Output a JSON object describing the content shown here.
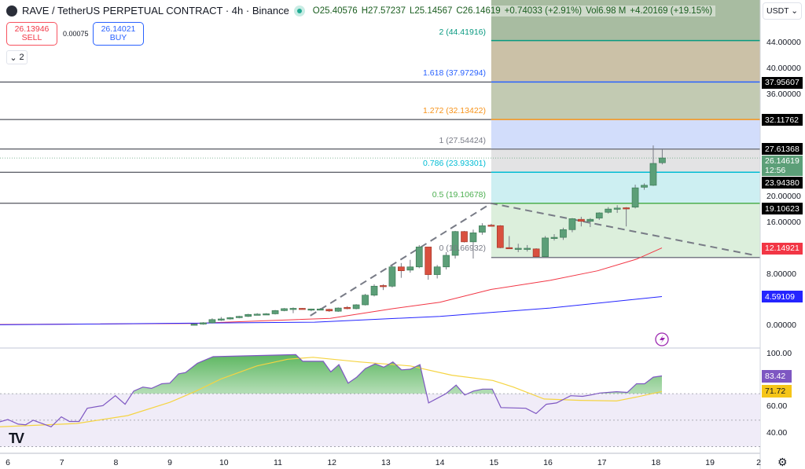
{
  "header": {
    "symbol": "RAVE / TetherUS PERPETUAL CONTRACT · 4h · Binance",
    "open": "O25.40576",
    "high": "H27.57237",
    "low": "L25.14567",
    "close": "C26.14619",
    "change": "+0.74033 (+2.91%)",
    "volume": "Vol6.98 M",
    "change2": "+4.20169 (+19.15%)"
  },
  "trade": {
    "sell_price": "26.13946",
    "sell_label": "SELL",
    "spread": "0.00075",
    "buy_price": "26.14021",
    "buy_label": "BUY"
  },
  "indicators_toggle": "2",
  "currency": "USDT",
  "fib_levels": [
    {
      "label": "2 (44.41916)",
      "price": 44.41916,
      "color": "#089981"
    },
    {
      "label": "1.618 (37.97294)",
      "price": 37.97294,
      "color": "#2962ff"
    },
    {
      "label": "1.272 (32.13422)",
      "price": 32.13422,
      "color": "#f7931a"
    },
    {
      "label": "1 (27.54424)",
      "price": 27.54424,
      "color": "#787b86"
    },
    {
      "label": "0.786 (23.93301)",
      "price": 23.93301,
      "color": "#00bcd4"
    },
    {
      "label": "0.5 (19.10678)",
      "price": 19.10678,
      "color": "#4caf50"
    },
    {
      "label": "0 (10.66932)",
      "price": 10.66932,
      "color": "#787b86"
    }
  ],
  "fib_zone_colors": [
    "#a8bca1",
    "#cbc1a7",
    "#c2cab2",
    "#d2ddfb",
    "#e3e3e4",
    "#cdeff2",
    "#dcefdc"
  ],
  "price_axis": [
    {
      "label": "44.00000",
      "value": 44
    },
    {
      "label": "40.00000",
      "value": 40
    },
    {
      "label": "36.00000",
      "value": 36
    },
    {
      "label": "20.00000",
      "value": 20
    },
    {
      "label": "16.00000",
      "value": 16
    },
    {
      "label": "8.00000",
      "value": 8
    },
    {
      "label": "0.00000",
      "value": 0
    }
  ],
  "price_tags": [
    {
      "label": "37.95607",
      "value": 37.95607,
      "color": "#000000"
    },
    {
      "label": "32.11762",
      "value": 32.11762,
      "color": "#000000"
    },
    {
      "label": "27.61368",
      "value": 27.61368,
      "color": "#000000"
    },
    {
      "label": "23.94380",
      "value": 23.9438,
      "color": "#000000"
    },
    {
      "label": "19.10623",
      "value": 19.10623,
      "color": "#000000"
    },
    {
      "label": "12.14921",
      "value": 12.14921,
      "color": "#f23645"
    },
    {
      "label": "4.59109",
      "value": 4.59109,
      "color": "#2424ff"
    }
  ],
  "last_price": {
    "label": "26.14619",
    "countdown": "12:56",
    "value": 26.14619,
    "color": "#5c9f78"
  },
  "rsi_axis": [
    {
      "label": "100.00",
      "value": 100
    },
    {
      "label": "60.00",
      "value": 60
    },
    {
      "label": "40.00",
      "value": 40
    }
  ],
  "rsi_tags": [
    {
      "label": "83.42",
      "value": 83.42,
      "color": "#7e57c2"
    },
    {
      "label": "71.72",
      "value": 71.72,
      "color": "#f5c518"
    }
  ],
  "time_axis": [
    "6",
    "7",
    "8",
    "9",
    "10",
    "11",
    "12",
    "13",
    "14",
    "15",
    "16",
    "17",
    "18",
    "19",
    "2"
  ],
  "chart_data": {
    "type": "candlestick",
    "start_day": 9.45,
    "candles_per_day": 6,
    "candles": [
      [
        0.2,
        0.4,
        0.1,
        0.3
      ],
      [
        0.3,
        0.6,
        0.2,
        0.5
      ],
      [
        0.5,
        1.2,
        0.4,
        1.0
      ],
      [
        1.0,
        1.4,
        0.8,
        1.1
      ],
      [
        1.1,
        1.4,
        1.0,
        1.3
      ],
      [
        1.3,
        1.6,
        1.2,
        1.5
      ],
      [
        1.5,
        1.9,
        1.4,
        1.8
      ],
      [
        1.8,
        2.0,
        1.7,
        1.85
      ],
      [
        1.85,
        2.0,
        1.8,
        1.9
      ],
      [
        1.9,
        2.5,
        1.8,
        2.4
      ],
      [
        2.4,
        2.8,
        2.3,
        2.7
      ],
      [
        2.7,
        2.9,
        2.0,
        2.75
      ],
      [
        2.75,
        2.8,
        2.6,
        2.65
      ],
      [
        2.6,
        2.7,
        2.3,
        2.65
      ],
      [
        2.6,
        2.8,
        2.5,
        2.65
      ],
      [
        2.6,
        2.7,
        2.2,
        2.35
      ],
      [
        2.3,
        2.9,
        2.2,
        2.8
      ],
      [
        2.9,
        3.1,
        2.6,
        2.7
      ],
      [
        2.7,
        3.4,
        2.6,
        3.3
      ],
      [
        3.3,
        5.0,
        3.2,
        4.8
      ],
      [
        4.8,
        6.5,
        4.6,
        6.2
      ],
      [
        6.3,
        6.5,
        5.6,
        6.2
      ],
      [
        6.2,
        9.5,
        6.0,
        9.2
      ],
      [
        9.2,
        9.8,
        7.5,
        8.6
      ],
      [
        8.7,
        10.3,
        8.3,
        9.2
      ],
      [
        9.2,
        12.6,
        9.0,
        12.3
      ],
      [
        12.3,
        12.3,
        7.2,
        8.0
      ],
      [
        8.0,
        9.5,
        7.4,
        9.2
      ],
      [
        9.2,
        11.5,
        8.8,
        11.0
      ],
      [
        11.0,
        14.8,
        10.5,
        14.7
      ],
      [
        14.7,
        14.8,
        13.0,
        13.1
      ],
      [
        13.1,
        15.0,
        10.5,
        14.5
      ],
      [
        14.6,
        16.0,
        14.2,
        15.6
      ],
      [
        15.7,
        15.9,
        15.5,
        15.6
      ],
      [
        15.6,
        15.7,
        12.1,
        12.2
      ],
      [
        12.2,
        14.0,
        12.0,
        12.1
      ],
      [
        12.1,
        12.8,
        11.5,
        12.1
      ],
      [
        12.1,
        12.6,
        11.6,
        12.1
      ],
      [
        12.0,
        12.1,
        10.6,
        10.8
      ],
      [
        10.8,
        14.0,
        10.7,
        13.7
      ],
      [
        13.7,
        14.3,
        13.3,
        13.8
      ],
      [
        13.8,
        15.3,
        13.4,
        15.0
      ],
      [
        15.0,
        16.8,
        14.6,
        16.7
      ],
      [
        16.6,
        17.0,
        15.5,
        16.3
      ],
      [
        16.3,
        16.8,
        15.4,
        16.6
      ],
      [
        16.8,
        17.7,
        16.5,
        17.6
      ],
      [
        17.7,
        18.5,
        17.5,
        18.2
      ],
      [
        18.3,
        18.8,
        17.6,
        18.35
      ],
      [
        18.4,
        18.5,
        15.5,
        18.3
      ],
      [
        18.5,
        22.0,
        18.3,
        21.5
      ],
      [
        21.6,
        22.2,
        21.2,
        21.9
      ],
      [
        21.9,
        28.1,
        21.8,
        25.3
      ],
      [
        25.41,
        27.57,
        25.15,
        26.15
      ]
    ],
    "ma_red": [
      [
        5.85,
        0.25
      ],
      [
        9.44,
        0.4
      ],
      [
        11.97,
        1.2
      ],
      [
        13.13,
        2.7
      ],
      [
        14.0,
        3.7
      ],
      [
        14.95,
        5.7
      ],
      [
        16.04,
        7.1
      ],
      [
        16.92,
        8.6
      ],
      [
        17.64,
        10.4
      ],
      [
        18.11,
        12.15
      ]
    ],
    "ma_blue": [
      [
        5.85,
        0.2
      ],
      [
        11.68,
        0.6
      ],
      [
        14.0,
        1.5
      ],
      [
        16.04,
        2.8
      ],
      [
        18.11,
        4.59
      ]
    ],
    "trendline": [
      [
        11.6,
        1.6
      ],
      [
        14.95,
        19.1
      ],
      [
        19.83,
        11.0
      ]
    ],
    "fib_box_start_day": 14.95,
    "rsi": [
      [
        5.85,
        48.7
      ],
      [
        6.0,
        50.5
      ],
      [
        6.19,
        47
      ],
      [
        6.33,
        46.5
      ],
      [
        6.47,
        50
      ],
      [
        6.8,
        45
      ],
      [
        6.99,
        52.5
      ],
      [
        7.14,
        49
      ],
      [
        7.32,
        49
      ],
      [
        7.47,
        59
      ],
      [
        7.76,
        61
      ],
      [
        7.99,
        68.5
      ],
      [
        8.17,
        62
      ],
      [
        8.33,
        72
      ],
      [
        8.5,
        75
      ],
      [
        8.66,
        74
      ],
      [
        8.85,
        77.5
      ],
      [
        9.0,
        78
      ],
      [
        9.16,
        85
      ],
      [
        9.29,
        86
      ],
      [
        9.51,
        93
      ],
      [
        9.8,
        98
      ],
      [
        11.33,
        99.5
      ],
      [
        11.46,
        94.5
      ],
      [
        11.84,
        94.5
      ],
      [
        11.98,
        86.5
      ],
      [
        12.13,
        92
      ],
      [
        12.3,
        78
      ],
      [
        12.46,
        82.5
      ],
      [
        12.62,
        89
      ],
      [
        12.8,
        92.5
      ],
      [
        12.96,
        90
      ],
      [
        13.13,
        94
      ],
      [
        13.29,
        88
      ],
      [
        13.45,
        88.5
      ],
      [
        13.63,
        92
      ],
      [
        13.79,
        63
      ],
      [
        14.11,
        70
      ],
      [
        14.3,
        76.5
      ],
      [
        14.46,
        69
      ],
      [
        14.62,
        72
      ],
      [
        14.79,
        73.5
      ],
      [
        14.97,
        73.5
      ],
      [
        15.13,
        59.5
      ],
      [
        15.59,
        59
      ],
      [
        15.78,
        55
      ],
      [
        15.97,
        62
      ],
      [
        16.16,
        63
      ],
      [
        16.42,
        68.5
      ],
      [
        16.64,
        68
      ],
      [
        16.79,
        69
      ],
      [
        16.96,
        70.5
      ],
      [
        17.27,
        71.5
      ],
      [
        17.47,
        71
      ],
      [
        17.64,
        77.5
      ],
      [
        17.79,
        77.5
      ],
      [
        17.95,
        82.5
      ],
      [
        18.11,
        83.42
      ]
    ],
    "rsi_ma": [
      [
        5.85,
        45
      ],
      [
        7.27,
        47.5
      ],
      [
        8.22,
        53.5
      ],
      [
        9.0,
        63.5
      ],
      [
        9.46,
        71.5
      ],
      [
        9.94,
        81
      ],
      [
        10.61,
        91
      ],
      [
        11.18,
        96
      ],
      [
        11.65,
        97.5
      ],
      [
        12.51,
        94
      ],
      [
        13.45,
        91
      ],
      [
        14.22,
        84
      ],
      [
        14.98,
        80
      ],
      [
        15.36,
        75
      ],
      [
        15.93,
        66
      ],
      [
        16.6,
        65
      ],
      [
        17.27,
        64.5
      ],
      [
        17.64,
        67.5
      ],
      [
        18.11,
        71.72
      ]
    ],
    "rsi_levels": [
      70,
      50,
      30
    ]
  }
}
